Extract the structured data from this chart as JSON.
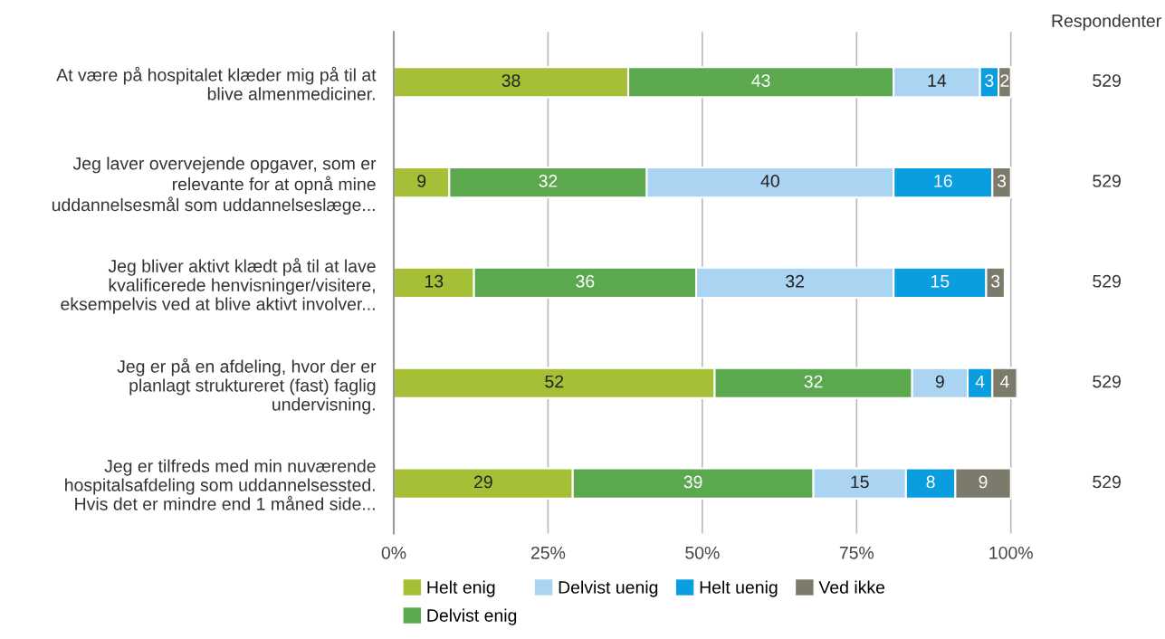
{
  "chart_data": {
    "type": "bar",
    "orientation": "horizontal",
    "stacked": true,
    "data_labels": true,
    "grid": "x",
    "legend": "bottom",
    "categories": [
      "At være på hospitalet klæder mig på til at\nblive almenmediciner.",
      "Jeg laver overvejende opgaver, som er\nrelevante for at opnå mine\nuddannelsesmål som uddannelseslæge...",
      "Jeg bliver aktivt klædt på til at lave\nkvalificerede henvisninger/visitere,\neksempelvis ved at blive aktivt involver...",
      "Jeg er på en afdeling, hvor der er\nplanlagt struktureret (fast) faglig\nundervisning.",
      "Jeg er tilfreds med min nuværende\nhospitalsafdeling som uddannelsessted.\nHvis det er mindre end 1 måned side..."
    ],
    "series": [
      {
        "name": "Helt enig",
        "color": "#a5c037",
        "values": [
          38,
          9,
          13,
          52,
          29
        ]
      },
      {
        "name": "Delvist enig",
        "color": "#5ba84f",
        "values": [
          43,
          32,
          36,
          32,
          39
        ]
      },
      {
        "name": "Delvist uenig",
        "color": "#aad4f2",
        "values": [
          14,
          40,
          32,
          9,
          15
        ]
      },
      {
        "name": "Helt uenig",
        "color": "#0a9de0",
        "values": [
          3,
          16,
          15,
          4,
          8
        ]
      },
      {
        "name": "Ved ikke",
        "color": "#7c7a6b",
        "values": [
          2,
          3,
          3,
          4,
          9
        ]
      }
    ],
    "xlim": [
      0,
      101
    ],
    "xticks": [
      {
        "value": 0,
        "label": "0%"
      },
      {
        "value": 25,
        "label": "25%"
      },
      {
        "value": 50,
        "label": "50%"
      },
      {
        "value": 75,
        "label": "75%"
      },
      {
        "value": 100,
        "label": "100%"
      }
    ],
    "annotations": [
      "Respondenter",
      "529",
      "529",
      "529",
      "529",
      "529"
    ]
  }
}
